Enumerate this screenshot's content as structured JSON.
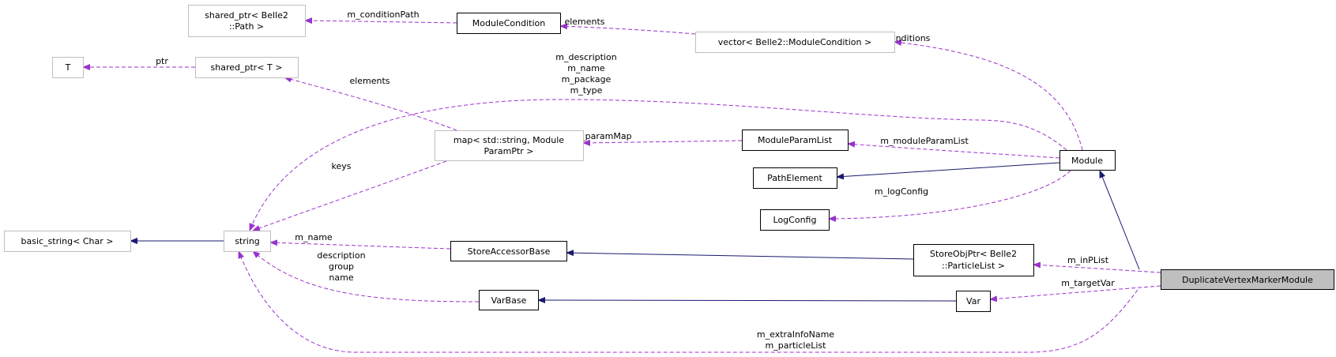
{
  "colors": {
    "usage_edge": "#9a32cd",
    "inheritance_edge": "#191970",
    "focus_node_fill": "#bfbfbf",
    "external_border": "#bfbfbf"
  },
  "nodes": {
    "shared_ptr_path": [
      "shared_ptr< Belle2",
      "::Path >"
    ],
    "module_condition": "ModuleCondition",
    "vector_module_condition": "vector< Belle2::ModuleCondition >",
    "t": "T",
    "shared_ptr_t": "shared_ptr< T >",
    "map_param": [
      "map< std::string, Module",
      "ParamPtr >"
    ],
    "module_param_list": "ModuleParamList",
    "module": "Module",
    "path_element": "PathElement",
    "log_config": "LogConfig",
    "basic_string": "basic_string< Char >",
    "string": "string",
    "store_accessor_base": "StoreAccessorBase",
    "store_obj_ptr": [
      "StoreObjPtr< Belle2",
      "::ParticleList >"
    ],
    "var_base": "VarBase",
    "var": "Var",
    "duplicate_vertex_marker_module": "DuplicateVertexMarkerModule"
  },
  "edge_labels": {
    "condition_path": "m_conditionPath",
    "vector_elements": "elements",
    "ptr": "ptr",
    "map_elements": "elements",
    "conditions": "m_conditions",
    "module_strings": [
      "m_description",
      "m_name",
      "m_package",
      "m_type"
    ],
    "param_map": "m_paramMap",
    "module_param_list": "m_moduleParamList",
    "log_config": "m_logConfig",
    "keys": "keys",
    "store_name": "m_name",
    "varbase_strings": [
      "description",
      "group",
      "name"
    ],
    "dvmm_strings": [
      "m_extraInfoName",
      "m_particleList"
    ],
    "in_plist": "m_inPList",
    "target_var": "m_targetVar"
  }
}
